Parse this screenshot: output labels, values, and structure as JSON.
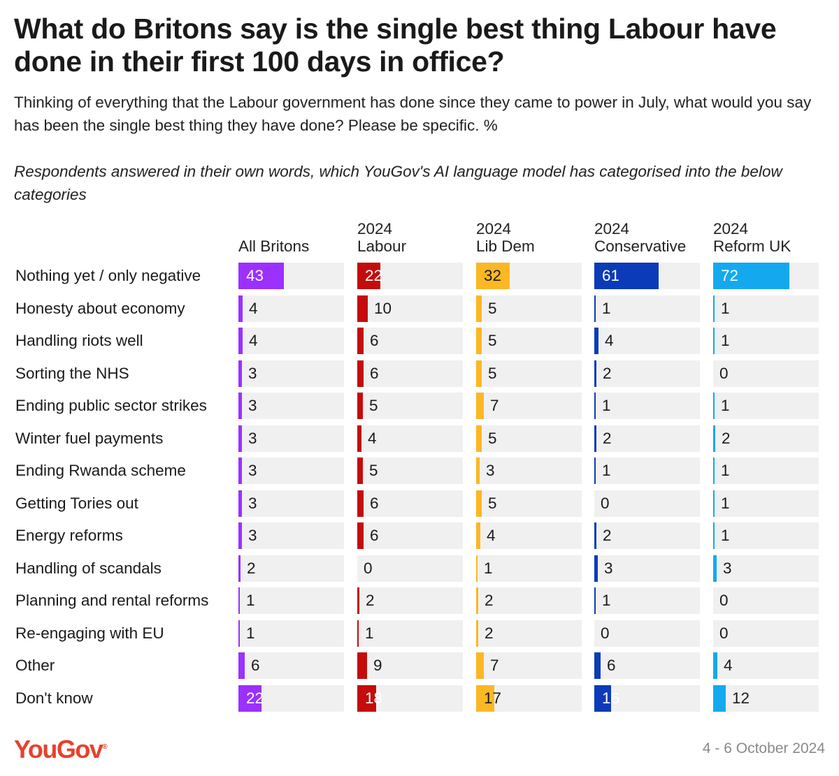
{
  "title": "What do Britons say is the single best thing Labour have done in their first 100 days in office?",
  "subtitle": "Thinking of everything that the Labour government has done since they came to power in July, what would you say has been the single best thing they have done? Please be specific. %",
  "note": "Respondents answered in their own words, which YouGov's AI language model has categorised into the below categories",
  "brand": "YouGov",
  "date": "4 - 6 October 2024",
  "chart_data": {
    "type": "bar",
    "title": "What do Britons say is the single best thing Labour have done in their first 100 days in office?",
    "unit": "%",
    "xlim": [
      0,
      100
    ],
    "categories": [
      "Nothing yet / only negative",
      "Honesty about economy",
      "Handling riots well",
      "Sorting the NHS",
      "Ending public sector strikes",
      "Winter fuel payments",
      "Ending Rwanda scheme",
      "Getting Tories out",
      "Energy reforms",
      "Handling of scandals",
      "Planning and rental reforms",
      "Re-engaging with EU",
      "Other",
      "Don't know"
    ],
    "series": [
      {
        "name": "All Britons",
        "line1": "",
        "line2": "All Britons",
        "color": "#9b30ff",
        "values": [
          43,
          4,
          4,
          3,
          3,
          3,
          3,
          3,
          3,
          2,
          1,
          1,
          6,
          22
        ]
      },
      {
        "name": "2024 Labour",
        "line1": "2024",
        "line2": "Labour",
        "color": "#c40c0c",
        "values": [
          22,
          10,
          6,
          6,
          5,
          4,
          5,
          6,
          6,
          0,
          2,
          1,
          9,
          18
        ]
      },
      {
        "name": "2024 Lib Dem",
        "line1": "2024",
        "line2": "Lib Dem",
        "color": "#fbb724",
        "values": [
          32,
          5,
          5,
          5,
          7,
          5,
          3,
          5,
          4,
          1,
          2,
          2,
          7,
          17
        ]
      },
      {
        "name": "2024 Conservative",
        "line1": "2024",
        "line2": "Conservative",
        "color": "#0b3bb8",
        "values": [
          61,
          1,
          4,
          2,
          1,
          2,
          1,
          0,
          2,
          3,
          1,
          0,
          6,
          16
        ]
      },
      {
        "name": "2024 Reform UK",
        "line1": "2024",
        "line2": "Reform UK",
        "color": "#14a9ef",
        "values": [
          72,
          1,
          1,
          0,
          1,
          2,
          1,
          1,
          1,
          3,
          0,
          0,
          4,
          12
        ]
      }
    ]
  }
}
